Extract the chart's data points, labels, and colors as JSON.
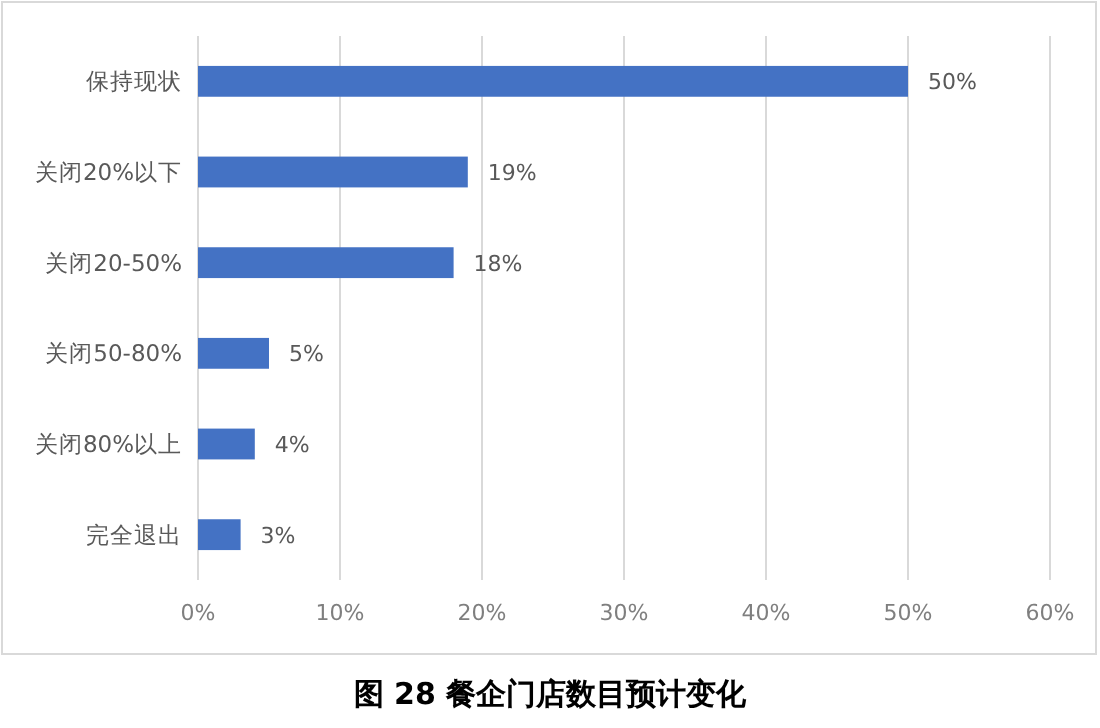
{
  "chart_data": {
    "type": "bar",
    "orientation": "horizontal",
    "title": "图 28 餐企门店数目预计变化",
    "categories": [
      "保持现状",
      "关闭20%以下",
      "关闭20-50%",
      "关闭50-80%",
      "关闭80%以上",
      "完全退出"
    ],
    "values": [
      50,
      19,
      18,
      5,
      4,
      3
    ],
    "value_labels": [
      "50%",
      "19%",
      "18%",
      "5%",
      "4%",
      "3%"
    ],
    "color": "#4472c4",
    "xlim": [
      0,
      60
    ],
    "xticks": [
      {
        "value": 0,
        "label": "0%"
      },
      {
        "value": 10,
        "label": "10%"
      },
      {
        "value": 20,
        "label": "20%"
      },
      {
        "value": 30,
        "label": "30%"
      },
      {
        "value": 40,
        "label": "40%"
      },
      {
        "value": 50,
        "label": "50%"
      },
      {
        "value": 60,
        "label": "60%"
      }
    ],
    "grid": "x"
  }
}
